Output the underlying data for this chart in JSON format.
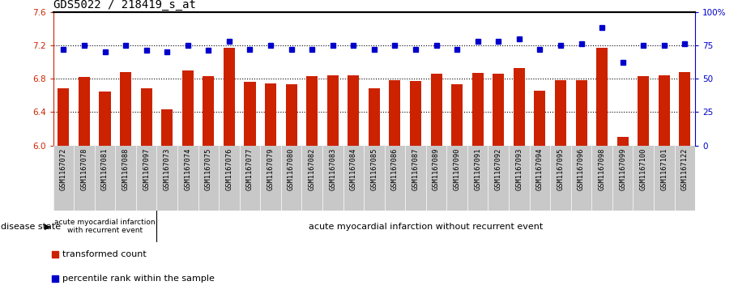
{
  "title": "GDS5022 / 218419_s_at",
  "samples": [
    "GSM1167072",
    "GSM1167078",
    "GSM1167081",
    "GSM1167088",
    "GSM1167097",
    "GSM1167073",
    "GSM1167074",
    "GSM1167075",
    "GSM1167076",
    "GSM1167077",
    "GSM1167079",
    "GSM1167080",
    "GSM1167082",
    "GSM1167083",
    "GSM1167084",
    "GSM1167085",
    "GSM1167086",
    "GSM1167087",
    "GSM1167089",
    "GSM1167090",
    "GSM1167091",
    "GSM1167092",
    "GSM1167093",
    "GSM1167094",
    "GSM1167095",
    "GSM1167096",
    "GSM1167098",
    "GSM1167099",
    "GSM1167100",
    "GSM1167101",
    "GSM1167122"
  ],
  "bar_values": [
    6.68,
    6.82,
    6.65,
    6.88,
    6.68,
    6.43,
    6.9,
    6.83,
    7.17,
    6.76,
    6.74,
    6.73,
    6.83,
    6.84,
    6.84,
    6.68,
    6.78,
    6.77,
    6.86,
    6.73,
    6.87,
    6.86,
    6.93,
    6.66,
    6.78,
    6.78,
    7.17,
    6.1,
    6.83,
    6.84,
    6.88
  ],
  "percentile_values": [
    72,
    75,
    70,
    75,
    71,
    70,
    75,
    71,
    78,
    72,
    75,
    72,
    72,
    75,
    75,
    72,
    75,
    72,
    75,
    72,
    78,
    78,
    80,
    72,
    75,
    76,
    88,
    62,
    75,
    75,
    76
  ],
  "group1_count": 5,
  "group1_label": "acute myocardial infarction\nwith recurrent event",
  "group2_label": "acute myocardial infarction without recurrent event",
  "bar_color": "#cc2200",
  "dot_color": "#0000cc",
  "ylim_left": [
    6.0,
    7.6
  ],
  "ylim_right": [
    0,
    100
  ],
  "yticks_left": [
    6.0,
    6.4,
    6.8,
    7.2,
    7.6
  ],
  "yticks_right": [
    0,
    25,
    50,
    75,
    100
  ],
  "hlines": [
    6.4,
    6.8,
    7.2
  ],
  "group_color": "#7dcd7d",
  "xtick_bg": "#c8c8c8",
  "disease_state_label": "disease state",
  "legend_bar_label": "transformed count",
  "legend_dot_label": "percentile rank within the sample",
  "title_fontsize": 10,
  "tick_label_fontsize": 7.5,
  "sample_fontsize": 6.2,
  "legend_fontsize": 8,
  "ds_label_fontsize": 8,
  "group1_fontsize": 6.5,
  "group2_fontsize": 8
}
